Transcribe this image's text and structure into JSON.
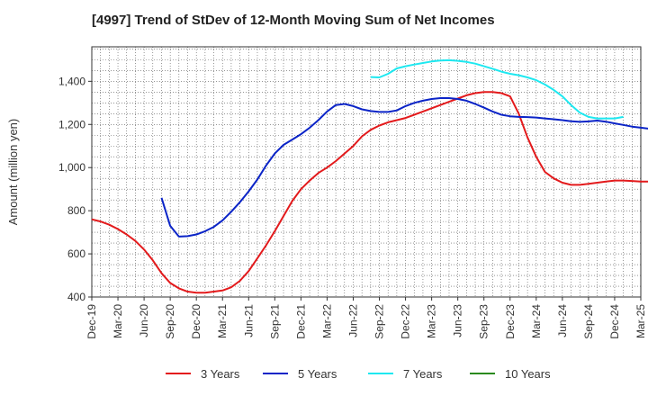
{
  "chart_data": {
    "type": "line",
    "title": "[4997]  Trend of StDev of 12-Month Moving Sum of Net Incomes",
    "ylabel": "Amount (million yen)",
    "xlabel": "",
    "ylim": [
      400,
      1560
    ],
    "yticks": [
      400,
      600,
      800,
      1000,
      1200,
      1400
    ],
    "ytick_labels": [
      "400",
      "600",
      "800",
      "1,000",
      "1,200",
      "1,400"
    ],
    "xticks": [
      "Dec-19",
      "Mar-20",
      "Jun-20",
      "Sep-20",
      "Dec-20",
      "Mar-21",
      "Jun-21",
      "Sep-21",
      "Dec-21",
      "Mar-22",
      "Jun-22",
      "Sep-22",
      "Dec-22",
      "Mar-23",
      "Jun-23",
      "Sep-23",
      "Dec-23",
      "Mar-24",
      "Jun-24",
      "Sep-24",
      "Dec-24",
      "Mar-25"
    ],
    "grid": true,
    "legend_position": "bottom",
    "series": [
      {
        "name": "3 Years",
        "color": "#e31a1c",
        "start_month": "Dec-19",
        "values": [
          760,
          750,
          735,
          715,
          690,
          660,
          620,
          570,
          510,
          465,
          440,
          425,
          420,
          420,
          425,
          430,
          445,
          475,
          520,
          580,
          640,
          705,
          775,
          845,
          900,
          940,
          975,
          1000,
          1030,
          1065,
          1100,
          1145,
          1175,
          1195,
          1210,
          1220,
          1230,
          1245,
          1260,
          1275,
          1290,
          1305,
          1320,
          1335,
          1345,
          1350,
          1350,
          1345,
          1330,
          1250,
          1140,
          1050,
          980,
          950,
          930,
          920,
          920,
          925,
          930,
          935,
          940,
          940,
          938,
          935,
          935,
          935,
          935,
          932,
          928,
          925,
          922,
          920,
          920,
          920,
          920,
          918
        ]
      },
      {
        "name": "5 Years",
        "color": "#0b24c7",
        "start_month": "Aug-20",
        "values": [
          860,
          730,
          680,
          682,
          690,
          705,
          725,
          755,
          795,
          840,
          890,
          945,
          1010,
          1065,
          1105,
          1130,
          1155,
          1185,
          1220,
          1260,
          1290,
          1295,
          1285,
          1270,
          1262,
          1258,
          1258,
          1265,
          1285,
          1300,
          1310,
          1318,
          1322,
          1322,
          1318,
          1310,
          1295,
          1278,
          1260,
          1245,
          1238,
          1235,
          1234,
          1232,
          1228,
          1224,
          1220,
          1215,
          1212,
          1214,
          1218,
          1213,
          1205,
          1198,
          1190,
          1185,
          1180,
          1177,
          1176,
          1178
        ]
      },
      {
        "name": "7 Years",
        "color": "#1ee8f0",
        "start_month": "Aug-22",
        "values": [
          1420,
          1418,
          1435,
          1460,
          1470,
          1478,
          1485,
          1492,
          1496,
          1498,
          1495,
          1490,
          1482,
          1470,
          1458,
          1445,
          1435,
          1428,
          1418,
          1405,
          1385,
          1360,
          1330,
          1290,
          1255,
          1235,
          1228,
          1228,
          1228,
          1235
        ]
      },
      {
        "name": "10 Years",
        "color": "#2a8a1e",
        "start_month": "",
        "values": []
      }
    ]
  }
}
